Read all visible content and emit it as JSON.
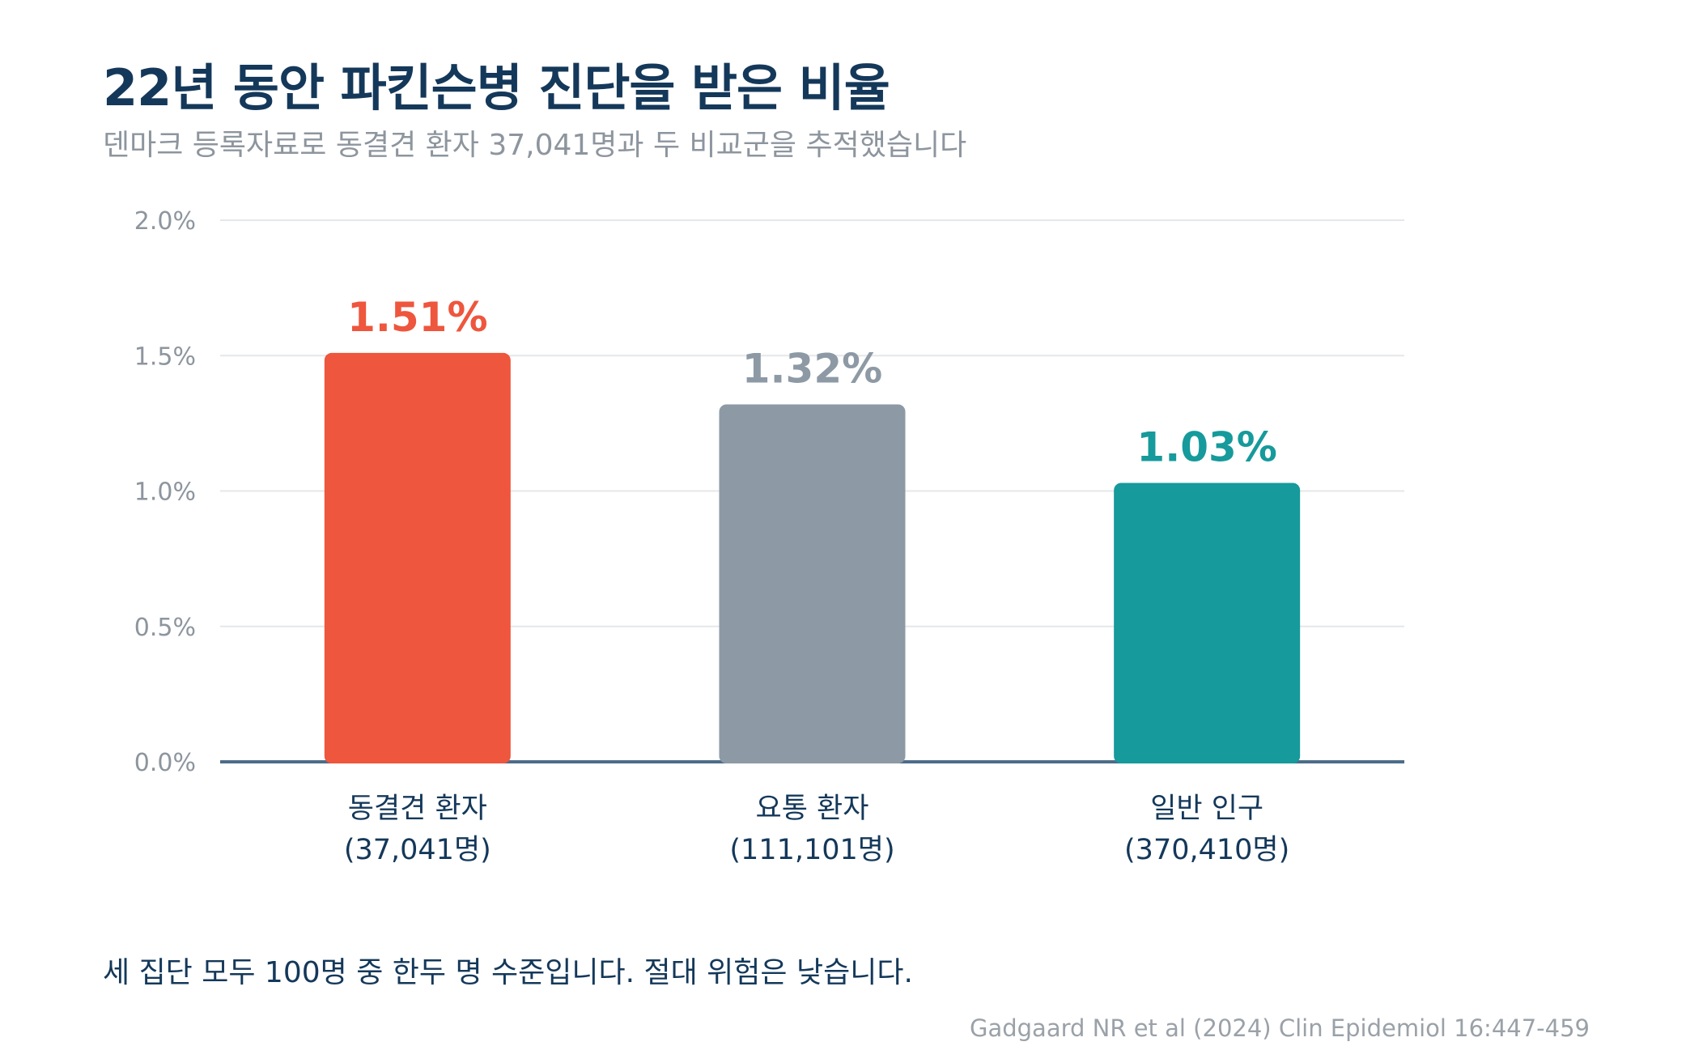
{
  "header": {
    "title": "22년 동안 파킨슨병 진단을 받은 비율",
    "subtitle": "덴마크 등록자료로 동결견 환자 37,041명과 두 비교군을 추적했습니다"
  },
  "chart_data": {
    "type": "bar",
    "categories": [
      "동결견 환자",
      "요통 환자",
      "일반 인구"
    ],
    "category_sublabels": [
      "(37,041명)",
      "(111,101명)",
      "(370,410명)"
    ],
    "values": [
      1.51,
      1.32,
      1.03
    ],
    "value_labels": [
      "1.51%",
      "1.32%",
      "1.03%"
    ],
    "colors": [
      "#ee563d",
      "#8d9aa5",
      "#169a9b"
    ],
    "label_colors": [
      "#ee563d",
      "#8d9aa5",
      "#169a9b"
    ],
    "y_ticks": [
      0.0,
      0.5,
      1.0,
      1.5,
      2.0
    ],
    "y_tick_labels": [
      "0.0%",
      "0.5%",
      "1.0%",
      "1.5%",
      "2.0%"
    ],
    "ylim": [
      0,
      2.0
    ],
    "grid": true,
    "gridline_color": "#e5e7ea",
    "axis_color": "#4d6d89",
    "text_color": "#14385a",
    "tick_color": "#8d959e"
  },
  "footer": {
    "note": "세 집단 모두 100명 중 한두 명 수준입니다. 절대 위험은 낮습니다.",
    "source": "Gadgaard NR et al (2024) Clin Epidemiol 16:447-459"
  }
}
